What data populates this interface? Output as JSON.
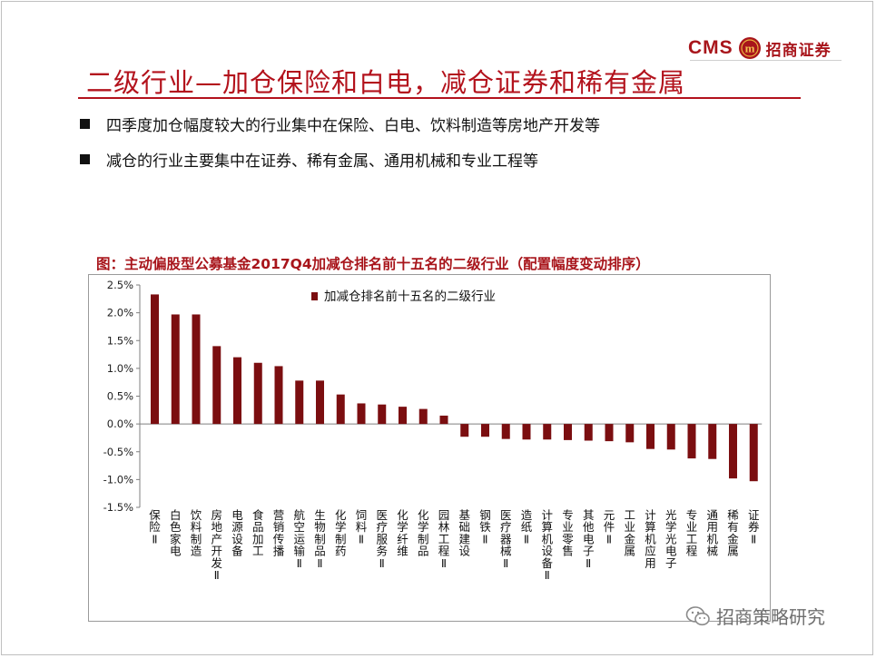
{
  "logo": {
    "brand": "CMS",
    "badge_glyph": "m",
    "name": "招商证券"
  },
  "title": "二级行业—加仓保险和白电，减仓证券和稀有金属",
  "bullets": [
    "四季度加仓幅度较大的行业集中在保险、白电、饮料制造等房地产开发等",
    "减仓的行业主要集中在证券、稀有金属、通用机械和专业工程等"
  ],
  "watermark": "招商策略研究",
  "colors": {
    "accent": "#b3121c",
    "bar": "#7b0e10"
  },
  "chart_data": {
    "type": "bar",
    "title": "图：主动偏股型公募基金2017Q4加减仓排名前十五名的二级行业（配置幅度变动排序）",
    "legend": "加减仓排名前十五名的二级行业",
    "legend_position": "top-center",
    "ylim": [
      -1.5,
      2.5
    ],
    "yticks": [
      2.5,
      2.0,
      1.5,
      1.0,
      0.5,
      0.0,
      -0.5,
      -1.0,
      -1.5
    ],
    "ytick_labels": [
      "2.5%",
      "2.0%",
      "1.5%",
      "1.0%",
      "0.5%",
      "0.0%",
      "-0.5%",
      "-1.0%",
      "-1.5%"
    ],
    "unit": "%",
    "grid": false,
    "categories": [
      "保险Ⅱ",
      "白色家电",
      "饮料制造",
      "房地产开发Ⅱ",
      "电源设备",
      "食品加工",
      "营销传播",
      "航空运输Ⅱ",
      "生物制品Ⅱ",
      "化学制药",
      "饲料Ⅱ",
      "医疗服务Ⅱ",
      "化学纤维",
      "化学制品",
      "园林工程Ⅱ",
      "基础建设",
      "钢铁Ⅱ",
      "医疗器械Ⅱ",
      "造纸Ⅱ",
      "计算机设备Ⅱ",
      "专业零售",
      "其他电子Ⅱ",
      "元件Ⅱ",
      "工业金属",
      "计算机应用",
      "光学光电子",
      "专业工程",
      "通用机械",
      "稀有金属",
      "证券Ⅱ"
    ],
    "values": [
      2.33,
      1.97,
      1.97,
      1.4,
      1.2,
      1.1,
      1.04,
      0.78,
      0.78,
      0.53,
      0.37,
      0.35,
      0.31,
      0.27,
      0.15,
      -0.23,
      -0.23,
      -0.27,
      -0.28,
      -0.28,
      -0.29,
      -0.3,
      -0.31,
      -0.33,
      -0.45,
      -0.46,
      -0.62,
      -0.63,
      -0.98,
      -1.03
    ]
  }
}
